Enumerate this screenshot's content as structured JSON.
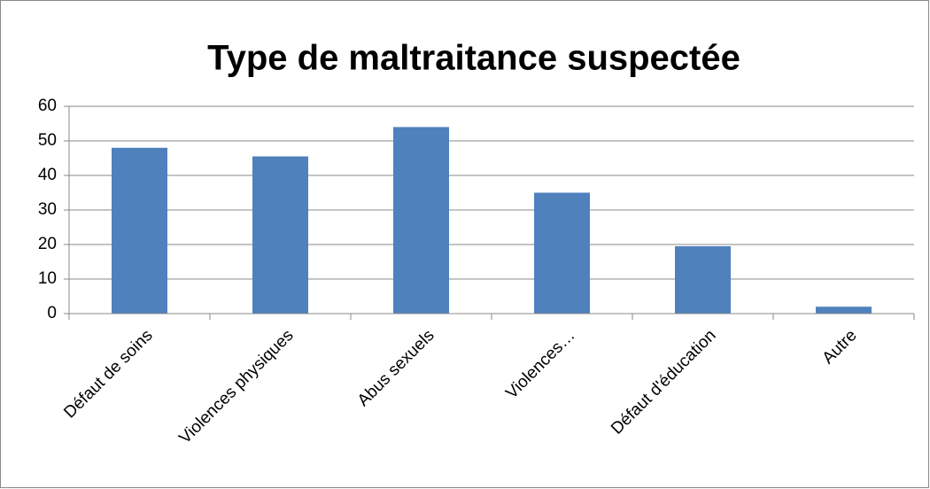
{
  "chart_data": {
    "type": "bar",
    "title": "Type de maltraitance suspectée",
    "categories": [
      "Défaut de soins",
      "Violences physiques",
      "Abus sexuels",
      "Violences…",
      "Défaut d'éducation",
      "Autre"
    ],
    "values": [
      48,
      45.5,
      54,
      35,
      19.5,
      2
    ],
    "color": "#4f81bd",
    "ylim": [
      0,
      60
    ],
    "yticks": [
      0,
      10,
      20,
      30,
      40,
      50,
      60
    ],
    "grid": true
  }
}
